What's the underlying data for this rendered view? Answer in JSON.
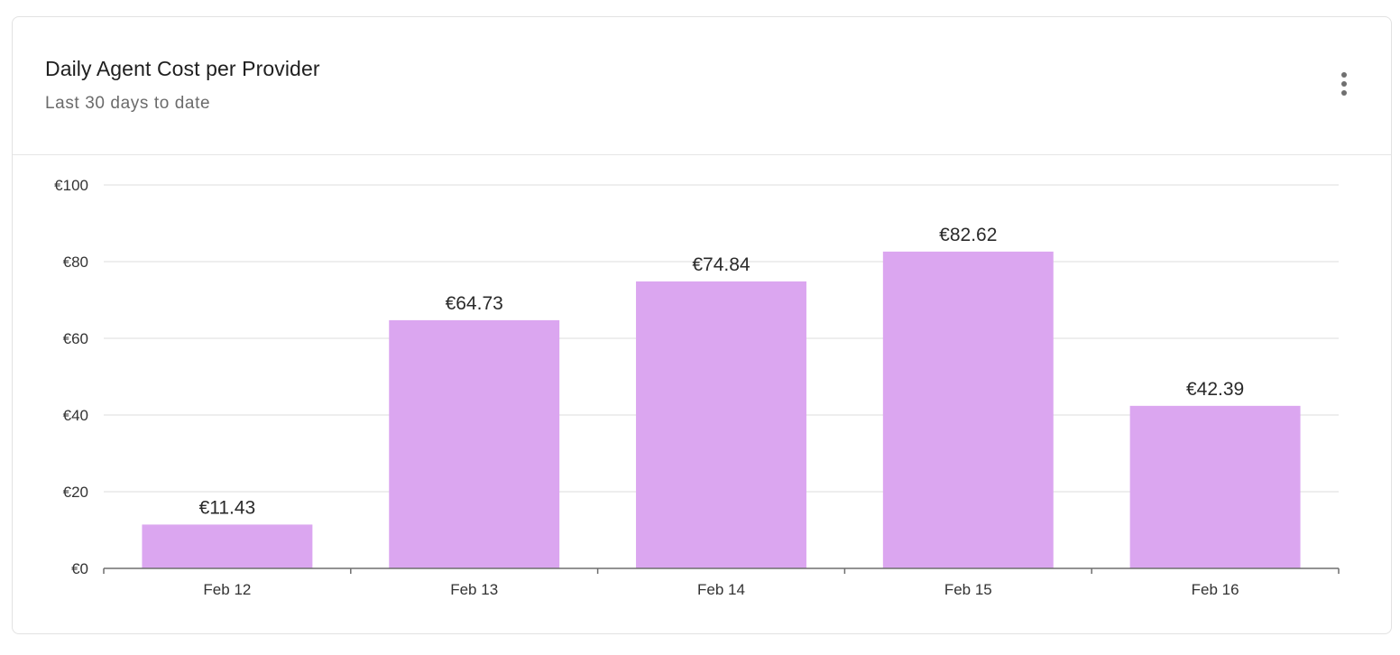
{
  "card": {
    "title": "Daily Agent Cost per Provider",
    "subtitle": "Last 30 days to date",
    "menu_icon": "more-vertical-icon"
  },
  "chart_data": {
    "type": "bar",
    "categories": [
      "Feb 12",
      "Feb 13",
      "Feb 14",
      "Feb 15",
      "Feb 16"
    ],
    "values": [
      11.43,
      64.73,
      74.84,
      82.62,
      42.39
    ],
    "data_labels": [
      "€11.43",
      "€64.73",
      "€74.84",
      "€82.62",
      "€42.39"
    ],
    "y_ticks": [
      0,
      20,
      40,
      60,
      80,
      100
    ],
    "y_tick_labels": [
      "€0",
      "€20",
      "€40",
      "€60",
      "€80",
      "€100"
    ],
    "ylim": [
      0,
      100
    ],
    "grid": true,
    "bar_color": "#dba6f0",
    "grid_color": "#e4e4e4",
    "axis_color": "#6e6e6e"
  }
}
